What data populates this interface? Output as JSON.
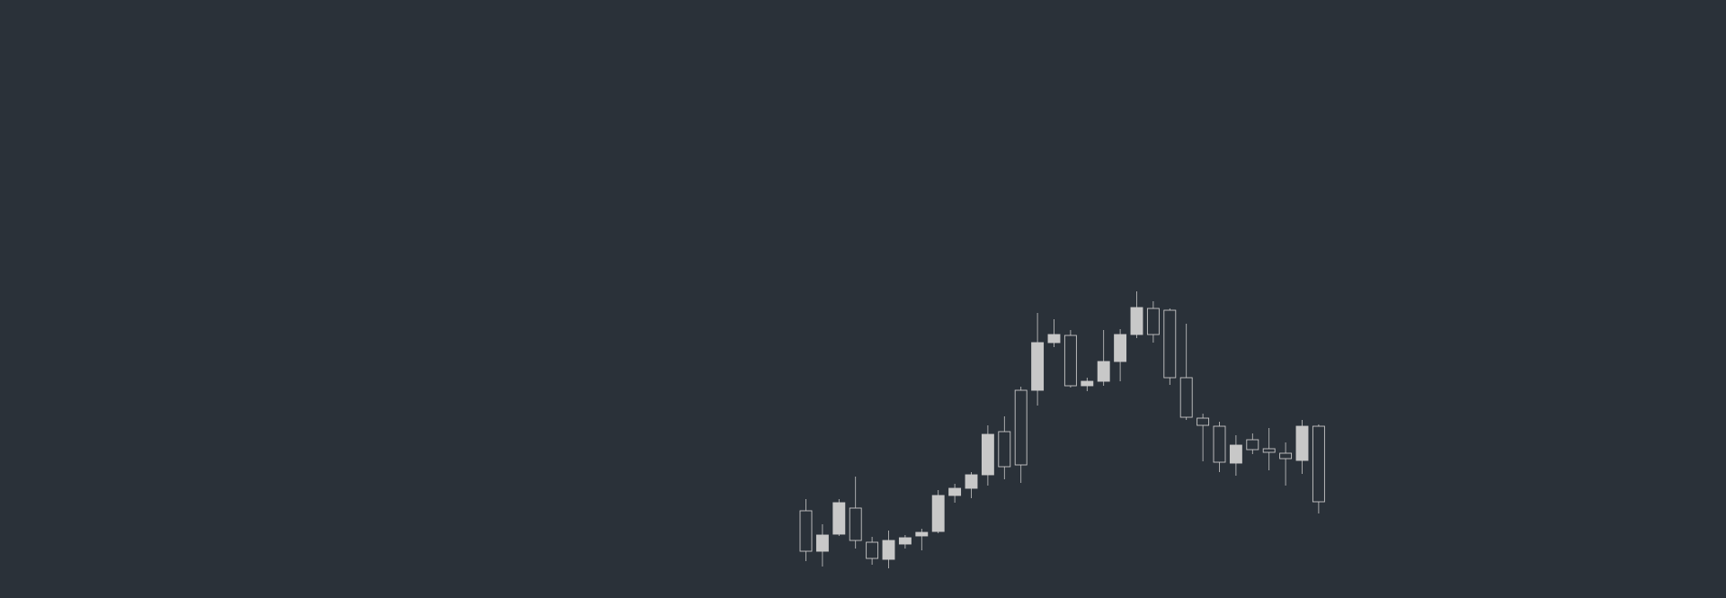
{
  "colors": {
    "background": "#2a3139",
    "candle": "#c8c8c8",
    "bullish_fill": "#2a3139",
    "bearish_fill": "#c8c8c8"
  },
  "chart_data": {
    "type": "candlestick",
    "grid": false,
    "legend": "none",
    "ylim": [
      0,
      665
    ],
    "candles": [
      {
        "open": 52,
        "close": 97,
        "high": 110,
        "low": 41
      },
      {
        "open": 70,
        "close": 52,
        "high": 82,
        "low": 35
      },
      {
        "open": 106,
        "close": 71,
        "high": 110,
        "low": 69
      },
      {
        "open": 64,
        "close": 100,
        "high": 135,
        "low": 55
      },
      {
        "open": 44,
        "close": 62,
        "high": 68,
        "low": 37
      },
      {
        "open": 64,
        "close": 43,
        "high": 75,
        "low": 33
      },
      {
        "open": 67,
        "close": 60,
        "high": 70,
        "low": 55
      },
      {
        "open": 73,
        "close": 69,
        "high": 77,
        "low": 53
      },
      {
        "open": 114,
        "close": 74,
        "high": 120,
        "low": 72
      },
      {
        "open": 122,
        "close": 114,
        "high": 127,
        "low": 106
      },
      {
        "open": 137,
        "close": 122,
        "high": 140,
        "low": 111
      },
      {
        "open": 182,
        "close": 137,
        "high": 192,
        "low": 125
      },
      {
        "open": 146,
        "close": 185,
        "high": 202,
        "low": 132
      },
      {
        "open": 148,
        "close": 231,
        "high": 235,
        "low": 128
      },
      {
        "open": 284,
        "close": 231,
        "high": 317,
        "low": 214
      },
      {
        "open": 293,
        "close": 284,
        "high": 310,
        "low": 279
      },
      {
        "open": 236,
        "close": 292,
        "high": 298,
        "low": 234
      },
      {
        "open": 241,
        "close": 236,
        "high": 245,
        "low": 230
      },
      {
        "open": 263,
        "close": 241,
        "high": 298,
        "low": 236
      },
      {
        "open": 293,
        "close": 263,
        "high": 299,
        "low": 241
      },
      {
        "open": 323,
        "close": 293,
        "high": 341,
        "low": 289
      },
      {
        "open": 293,
        "close": 322,
        "high": 330,
        "low": 284
      },
      {
        "open": 245,
        "close": 320,
        "high": 322,
        "low": 237
      },
      {
        "open": 201,
        "close": 245,
        "high": 305,
        "low": 198
      },
      {
        "open": 192,
        "close": 200,
        "high": 205,
        "low": 152
      },
      {
        "open": 151,
        "close": 191,
        "high": 196,
        "low": 140
      },
      {
        "open": 170,
        "close": 150,
        "high": 181,
        "low": 136
      },
      {
        "open": 165,
        "close": 176,
        "high": 183,
        "low": 160
      },
      {
        "open": 162,
        "close": 166,
        "high": 189,
        "low": 142
      },
      {
        "open": 155,
        "close": 161,
        "high": 173,
        "low": 125
      },
      {
        "open": 191,
        "close": 153,
        "high": 198,
        "low": 138
      },
      {
        "open": 107,
        "close": 191,
        "high": 193,
        "low": 94
      }
    ]
  }
}
